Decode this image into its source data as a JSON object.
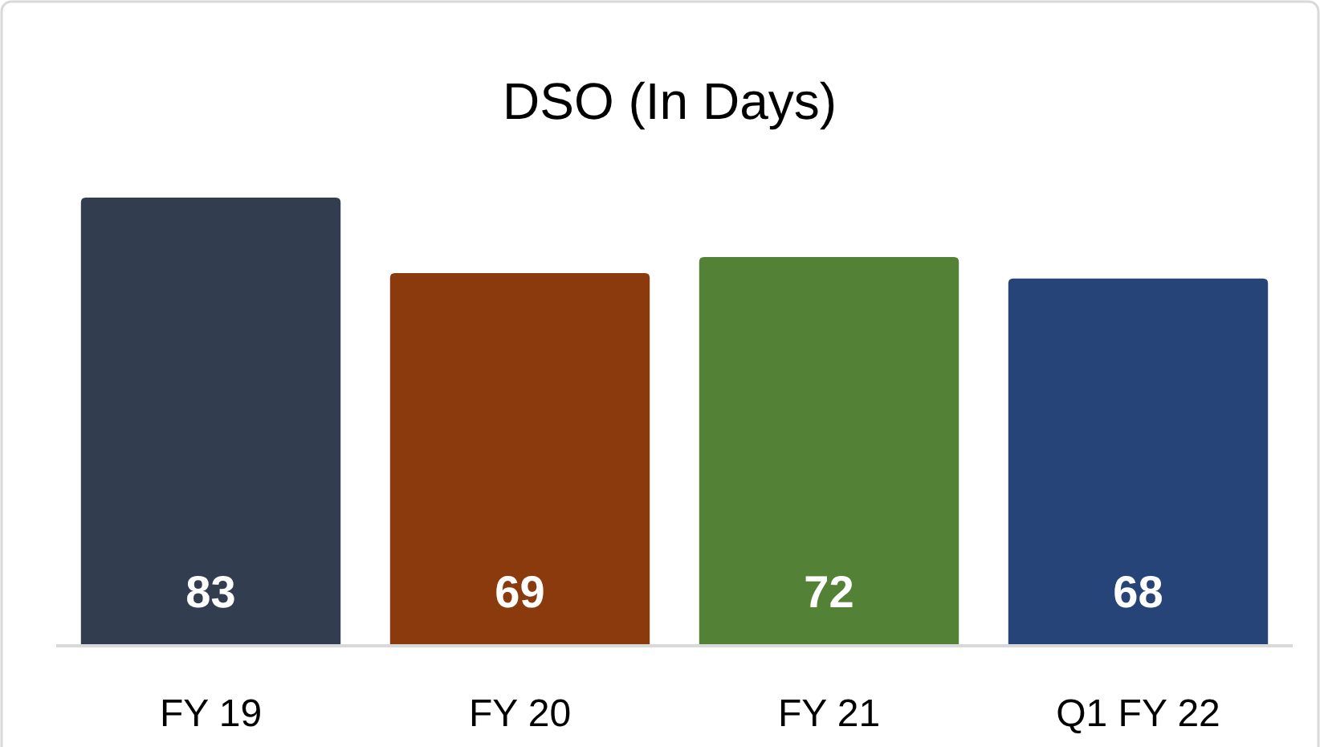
{
  "chart_data": {
    "type": "bar",
    "title": "DSO (In Days)",
    "categories": [
      "FY 19",
      "FY 20",
      "FY 21",
      "Q1 FY 22"
    ],
    "values": [
      83,
      69,
      72,
      68
    ],
    "colors": [
      "#323d4f",
      "#8b3a0e",
      "#538135",
      "#264478"
    ],
    "data_labels": true
  }
}
